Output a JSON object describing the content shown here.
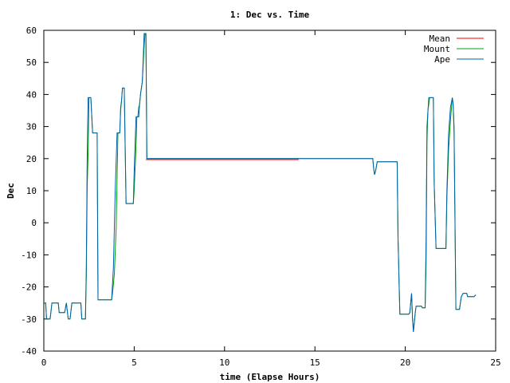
{
  "chart_data": {
    "type": "line",
    "title": "1: Dec vs. Time",
    "xlabel": "time (Elapse Hours)",
    "ylabel": "Dec",
    "xlim": [
      0,
      25
    ],
    "ylim": [
      -40,
      60
    ],
    "xticks": [
      0,
      5,
      10,
      15,
      20,
      25
    ],
    "yticks": [
      -40,
      -30,
      -20,
      -10,
      0,
      10,
      20,
      30,
      40,
      50,
      60
    ],
    "grid": false,
    "legend_position": "top-right",
    "series": [
      {
        "name": "Mean",
        "color": "#ff0000",
        "points": [
          [
            5.65,
            19.7
          ],
          [
            14.1,
            19.7
          ]
        ]
      },
      {
        "name": "Mount",
        "color": "#00a000",
        "points": [
          [
            0.0,
            -25
          ],
          [
            0.1,
            -25
          ],
          [
            0.15,
            -30
          ],
          [
            0.35,
            -30
          ],
          [
            0.45,
            -25
          ],
          [
            0.8,
            -25
          ],
          [
            0.85,
            -28
          ],
          [
            1.15,
            -28
          ],
          [
            1.25,
            -25
          ],
          [
            1.35,
            -30
          ],
          [
            1.45,
            -30
          ],
          [
            1.55,
            -25
          ],
          [
            2.05,
            -25
          ],
          [
            2.1,
            -30
          ],
          [
            2.3,
            -30
          ],
          [
            2.35,
            -17
          ],
          [
            2.4,
            11
          ],
          [
            2.45,
            22
          ],
          [
            2.5,
            39
          ],
          [
            2.6,
            39
          ],
          [
            2.7,
            28
          ],
          [
            2.95,
            28
          ],
          [
            3.0,
            -24
          ],
          [
            3.75,
            -24
          ],
          [
            3.8,
            -22
          ],
          [
            3.9,
            -16
          ],
          [
            4.0,
            -2
          ],
          [
            4.1,
            28
          ],
          [
            4.2,
            28
          ],
          [
            4.25,
            35
          ],
          [
            4.3,
            38
          ],
          [
            4.35,
            42
          ],
          [
            4.45,
            42
          ],
          [
            4.55,
            6
          ],
          [
            4.95,
            6
          ],
          [
            5.0,
            10
          ],
          [
            5.1,
            24
          ],
          [
            5.15,
            33
          ],
          [
            5.2,
            33
          ],
          [
            5.25,
            36
          ],
          [
            5.3,
            37
          ],
          [
            5.35,
            40
          ],
          [
            5.45,
            44
          ],
          [
            5.55,
            55
          ],
          [
            5.6,
            59
          ],
          [
            5.65,
            59
          ],
          [
            5.7,
            20
          ],
          [
            18.2,
            20
          ],
          [
            18.25,
            17
          ],
          [
            18.3,
            15
          ],
          [
            18.35,
            16
          ],
          [
            18.45,
            19
          ],
          [
            19.55,
            19
          ],
          [
            19.6,
            -5
          ],
          [
            19.7,
            -28.5
          ],
          [
            20.2,
            -28.5
          ],
          [
            20.25,
            -28
          ],
          [
            20.3,
            -25
          ],
          [
            20.35,
            -22
          ],
          [
            20.4,
            -30
          ],
          [
            20.45,
            -34
          ],
          [
            20.55,
            -28
          ],
          [
            20.6,
            -26
          ],
          [
            20.9,
            -26
          ],
          [
            20.95,
            -26.5
          ],
          [
            21.1,
            -26.5
          ],
          [
            21.15,
            -13
          ],
          [
            21.2,
            25
          ],
          [
            21.25,
            35
          ],
          [
            21.35,
            39
          ],
          [
            21.55,
            39
          ],
          [
            21.6,
            12
          ],
          [
            21.7,
            -8
          ],
          [
            22.25,
            -8
          ],
          [
            22.3,
            8
          ],
          [
            22.4,
            23
          ],
          [
            22.5,
            32
          ],
          [
            22.6,
            39
          ],
          [
            22.65,
            37
          ],
          [
            22.7,
            28
          ],
          [
            22.8,
            -27
          ],
          [
            23.0,
            -27
          ],
          [
            23.1,
            -23
          ],
          [
            23.2,
            -22
          ],
          [
            23.4,
            -22
          ],
          [
            23.45,
            -23
          ],
          [
            23.8,
            -23
          ],
          [
            23.9,
            -22.5
          ]
        ]
      },
      {
        "name": "Ape",
        "color": "#0060ad",
        "points": [
          [
            0.0,
            -25
          ],
          [
            0.1,
            -25
          ],
          [
            0.15,
            -30
          ],
          [
            0.35,
            -30
          ],
          [
            0.45,
            -25
          ],
          [
            0.8,
            -25
          ],
          [
            0.85,
            -28
          ],
          [
            1.15,
            -28
          ],
          [
            1.25,
            -25
          ],
          [
            1.35,
            -30
          ],
          [
            1.45,
            -30
          ],
          [
            1.55,
            -25
          ],
          [
            2.05,
            -25
          ],
          [
            2.1,
            -30
          ],
          [
            2.3,
            -30
          ],
          [
            2.35,
            -14
          ],
          [
            2.4,
            20
          ],
          [
            2.45,
            39
          ],
          [
            2.6,
            39
          ],
          [
            2.7,
            28
          ],
          [
            2.95,
            28
          ],
          [
            3.0,
            -24
          ],
          [
            3.75,
            -24
          ],
          [
            3.85,
            -14
          ],
          [
            3.95,
            10
          ],
          [
            4.05,
            28
          ],
          [
            4.2,
            28
          ],
          [
            4.25,
            36
          ],
          [
            4.3,
            38
          ],
          [
            4.35,
            42
          ],
          [
            4.45,
            42
          ],
          [
            4.55,
            6
          ],
          [
            4.95,
            6
          ],
          [
            5.0,
            16
          ],
          [
            5.1,
            33
          ],
          [
            5.25,
            33
          ],
          [
            5.3,
            37
          ],
          [
            5.35,
            40
          ],
          [
            5.45,
            44
          ],
          [
            5.55,
            59
          ],
          [
            5.65,
            59
          ],
          [
            5.7,
            20
          ],
          [
            18.2,
            20
          ],
          [
            18.25,
            17
          ],
          [
            18.3,
            15
          ],
          [
            18.35,
            16
          ],
          [
            18.45,
            19
          ],
          [
            19.55,
            19
          ],
          [
            19.6,
            -5
          ],
          [
            19.7,
            -28.5
          ],
          [
            20.2,
            -28.5
          ],
          [
            20.25,
            -28
          ],
          [
            20.3,
            -25
          ],
          [
            20.35,
            -22
          ],
          [
            20.4,
            -30
          ],
          [
            20.45,
            -34
          ],
          [
            20.55,
            -28
          ],
          [
            20.6,
            -26
          ],
          [
            20.9,
            -26
          ],
          [
            20.95,
            -26.5
          ],
          [
            21.1,
            -26.5
          ],
          [
            21.15,
            -5
          ],
          [
            21.2,
            30
          ],
          [
            21.3,
            39
          ],
          [
            21.55,
            39
          ],
          [
            21.6,
            12
          ],
          [
            21.7,
            -8
          ],
          [
            22.25,
            -8
          ],
          [
            22.3,
            10
          ],
          [
            22.4,
            28
          ],
          [
            22.5,
            36
          ],
          [
            22.6,
            39
          ],
          [
            22.65,
            37
          ],
          [
            22.7,
            30
          ],
          [
            22.8,
            -27
          ],
          [
            23.0,
            -27
          ],
          [
            23.1,
            -23
          ],
          [
            23.2,
            -22
          ],
          [
            23.4,
            -22
          ],
          [
            23.45,
            -23
          ],
          [
            23.8,
            -23
          ],
          [
            23.9,
            -22.5
          ]
        ]
      }
    ]
  }
}
